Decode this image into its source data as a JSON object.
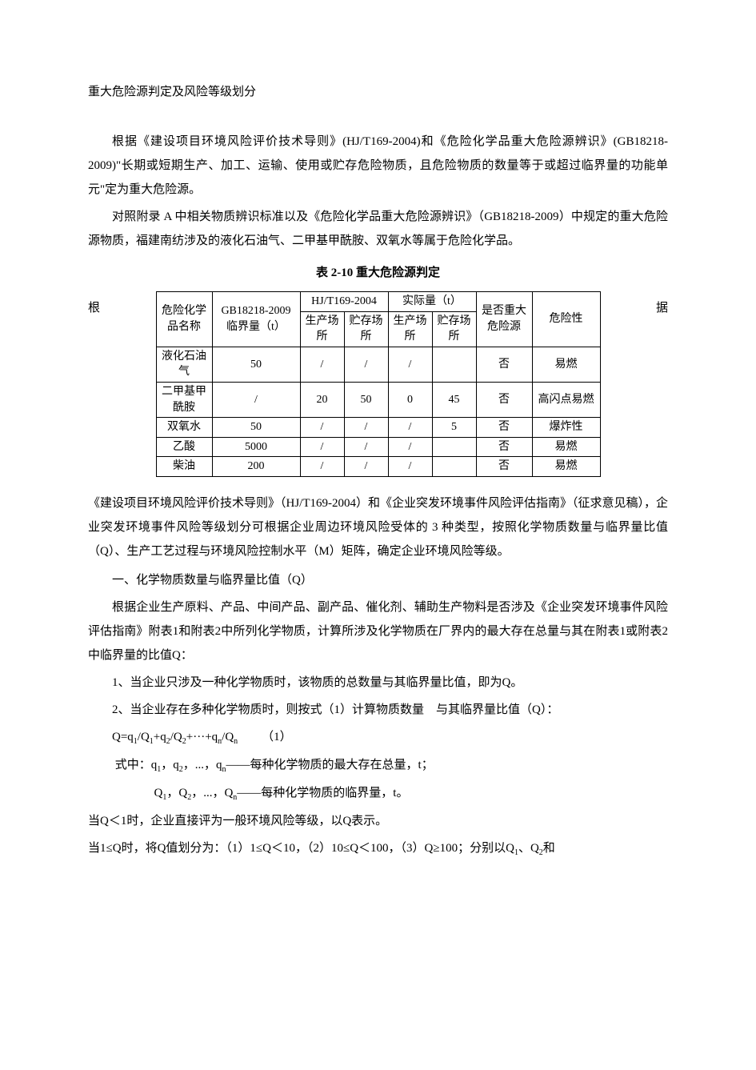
{
  "title": "重大危险源判定及风险等级划分",
  "intro": {
    "p1": "根据《建设项目环境风险评价技术导则》(HJ/T169-2004)和《危险化学品重大危险源辨识》(GB18218-2009)\"长期或短期生产、加工、运输、使用或贮存危险物质，且危险物质的数量等于或超过临界量的功能单元\"定为重大危险源。",
    "p2": "对照附录 A 中相关物质辨识标准以及《危险化学品重大危险源辨识》（GB18218-2009）中规定的重大危险源物质，福建南纺涉及的液化石油气、二甲基甲酰胺、双氧水等属于危险化学品。"
  },
  "table": {
    "caption": "表 2-10 重大危险源判定",
    "side_left": "根",
    "side_right": "据",
    "header": {
      "col_name": "危险化学品名称",
      "col_gb": "GB18218-2009临界量（t）",
      "col_hj": "HJ/T169-2004",
      "col_actual": "实际量（t）",
      "col_major": "是否重大危险源",
      "col_risk": "危险性",
      "sub_prod": "生产场所",
      "sub_store": "贮存场所"
    },
    "rows": [
      {
        "name": "液化石油气",
        "gb": "50",
        "hj_prod": "/",
        "hj_store": "/",
        "act_prod": "/",
        "act_store": "",
        "major": "否",
        "risk": "易燃"
      },
      {
        "name": "二甲基甲酰胺",
        "gb": "/",
        "hj_prod": "20",
        "hj_store": "50",
        "act_prod": "0",
        "act_store": "45",
        "major": "否",
        "risk": "高闪点易燃"
      },
      {
        "name": "双氧水",
        "gb": "50",
        "hj_prod": "/",
        "hj_store": "/",
        "act_prod": "/",
        "act_store": "5",
        "major": "否",
        "risk": "爆炸性"
      },
      {
        "name": "乙酸",
        "gb": "5000",
        "hj_prod": "/",
        "hj_store": "/",
        "act_prod": "/",
        "act_store": "",
        "major": "否",
        "risk": "易燃"
      },
      {
        "name": "柴油",
        "gb": "200",
        "hj_prod": "/",
        "hj_store": "/",
        "act_prod": "/",
        "act_store": "",
        "major": "否",
        "risk": "易燃"
      }
    ]
  },
  "body": {
    "p3": "《建设项目环境风险评价技术导则》（HJ/T169-2004）和《企业突发环境事件风险评估指南》（征求意见稿），企业突发环境事件风险等级划分可根据企业周边环境风险受体的 3 种类型，按照化学物质数量与临界量比值（Q）、生产工艺过程与环境风险控制水平（M）矩阵，确定企业环境风险等级。",
    "head1": "一、化学物质数量与临界量比值（Q）",
    "p4": "根据企业生产原料、产品、中间产品、副产品、催化剂、辅助生产物料是否涉及《企业突发环境事件风险评估指南》附表1和附表2中所列化学物质，计算所涉及化学物质在厂界内的最大存在总量与其在附表1或附表2中临界量的比值Q：",
    "li1": "1、当企业只涉及一种化学物质时，该物质的总数量与其临界量比值，即为Q。",
    "li2_a": "2、当企业存在多种化学物质时，则按式（1）计算物质数量",
    "li2_b": "与其临界量比值（Q）：",
    "formula_label": "（1）",
    "where_1_a": "式中：q",
    "where_1_b": "——每种化学物质的最大存在总量，t；",
    "where_2_b": "——每种化学物质的临界量，t。",
    "p5": "当Q＜1时，企业直接评为一般环境风险等级，以Q表示。",
    "p6_a": "当1≤Q时，将Q值划分为：（1）1≤Q＜10，（2）10≤Q＜100，（3）Q≥100；分别以Q",
    "p6_b": "和"
  }
}
